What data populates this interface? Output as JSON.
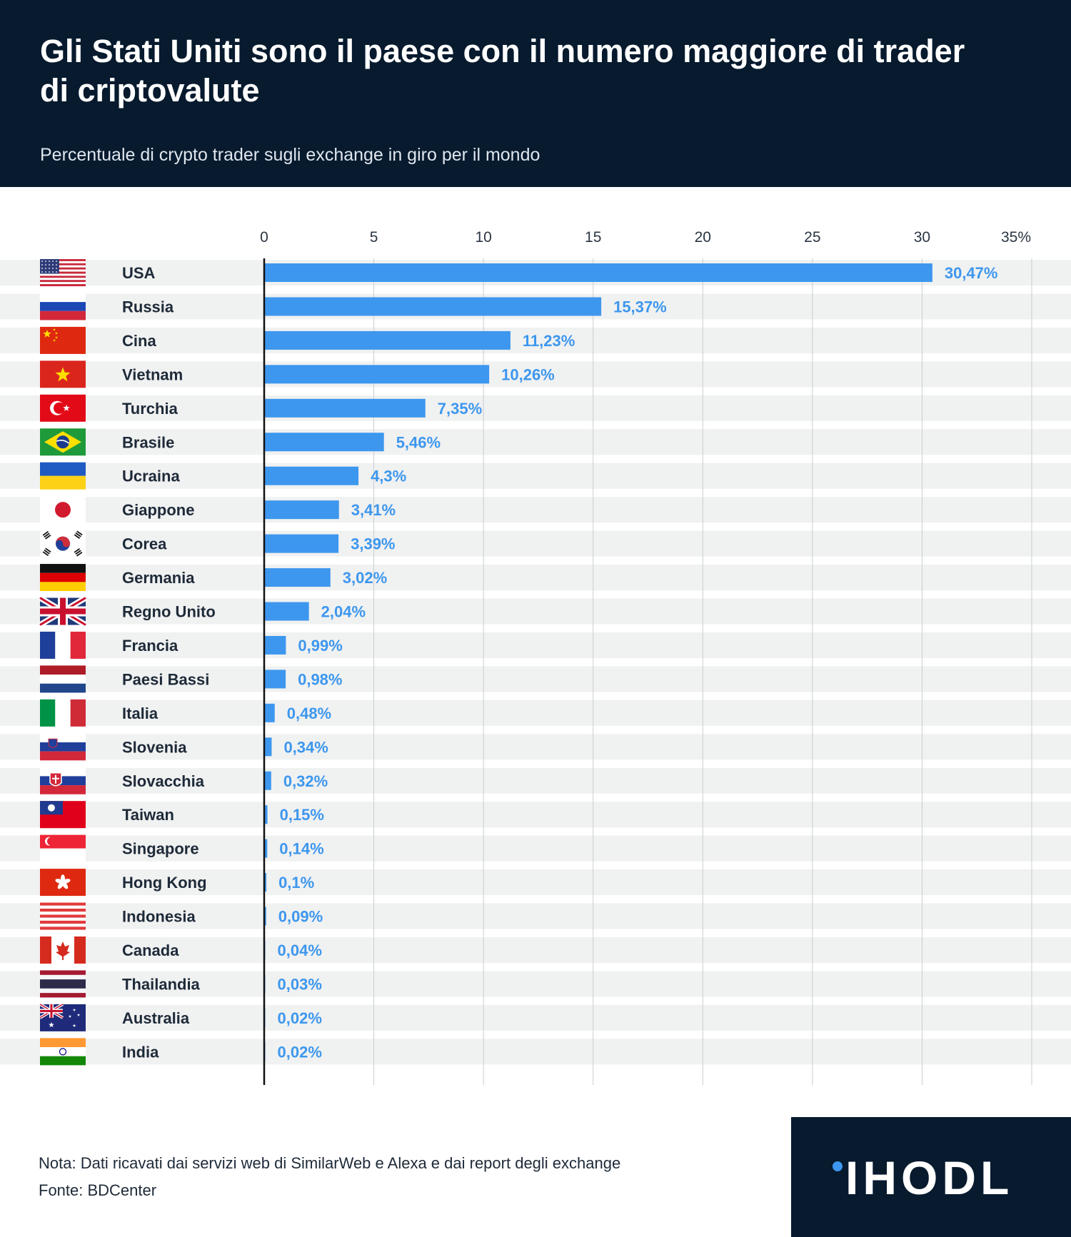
{
  "header": {
    "title": "Gli Stati Uniti sono il paese con il numero maggiore di trader di criptovalute",
    "subtitle": "Percentuale di crypto trader sugli exchange in giro per il mondo"
  },
  "footer": {
    "note": "Nota: Dati ricavati dai servizi web di SimilarWeb e Alexa e dai report degli exchange",
    "source": "Fonte: BDCenter",
    "logo": "IHODL"
  },
  "colors": {
    "bar": "#3d97ee",
    "value_label": "#3d97ee",
    "header_bg": "#071a2e",
    "row_band": "#f0f1f1",
    "gridline": "#c9cdd2"
  },
  "chart_data": {
    "type": "bar",
    "orientation": "horizontal",
    "categories": [
      "USA",
      "Russia",
      "Cina",
      "Vietnam",
      "Turchia",
      "Brasile",
      "Ucraina",
      "Giappone",
      "Corea",
      "Germania",
      "Regno Unito",
      "Francia",
      "Paesi Bassi",
      "Italia",
      "Slovenia",
      "Slovacchia",
      "Taiwan",
      "Singapore",
      "Hong Kong",
      "Indonesia",
      "Canada",
      "Thailandia",
      "Australia",
      "India"
    ],
    "values": [
      30.47,
      15.37,
      11.23,
      10.26,
      7.35,
      5.46,
      4.3,
      3.41,
      3.39,
      3.02,
      2.04,
      0.99,
      0.98,
      0.48,
      0.34,
      0.32,
      0.15,
      0.14,
      0.1,
      0.09,
      0.04,
      0.03,
      0.02,
      0.02
    ],
    "value_labels": [
      "30,47%",
      "15,37%",
      "11,23%",
      "10,26%",
      "7,35%",
      "5,46%",
      "4,3%",
      "3,41%",
      "3,39%",
      "3,02%",
      "2,04%",
      "0,99%",
      "0,98%",
      "0,48%",
      "0,34%",
      "0,32%",
      "0,15%",
      "0,14%",
      "0,1%",
      "0,09%",
      "0,04%",
      "0,03%",
      "0,02%",
      "0,02%"
    ],
    "flags": [
      "flag-usa",
      "flag-russia",
      "flag-china",
      "flag-vietnam",
      "flag-turkey",
      "flag-brazil",
      "flag-ukraine",
      "flag-japan",
      "flag-korea",
      "flag-germany",
      "flag-uk",
      "flag-france",
      "flag-netherlands",
      "flag-italy",
      "flag-slovenia",
      "flag-slovakia",
      "flag-taiwan",
      "flag-singapore",
      "flag-hong-kong",
      "flag-indonesia",
      "flag-canada",
      "flag-thailand",
      "flag-australia",
      "flag-india"
    ],
    "xlim": [
      0,
      35
    ],
    "xticks": [
      0,
      5,
      10,
      15,
      20,
      25,
      30,
      35
    ],
    "xtick_labels": [
      "0",
      "5",
      "10",
      "15",
      "20",
      "25",
      "30",
      "35%"
    ],
    "grid": true,
    "row_banding": true
  }
}
